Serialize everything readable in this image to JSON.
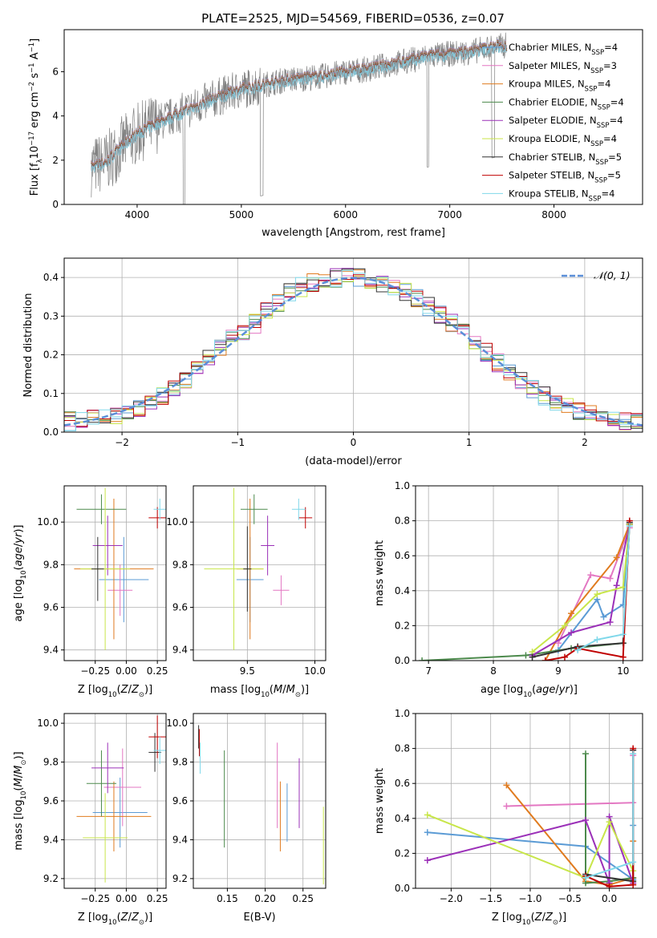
{
  "title": "PLATE=2525, MJD=54569, FIBERID=0536, z=0.07",
  "colors": {
    "Chabrier MILES": "#5b9bd5",
    "Salpeter MILES": "#e377c2",
    "Kroupa MILES": "#e07b1f",
    "Chabrier ELODIE": "#4c8a4c",
    "Salpeter ELODIE": "#9b30b8",
    "Kroupa ELODIE": "#c8e64a",
    "Chabrier STELIB": "#333333",
    "Salpeter STELIB": "#c00000",
    "Kroupa STELIB": "#80d8ea",
    "data": "#808080",
    "normal": "#5b8fd8",
    "grid": "#b0b0b0"
  },
  "chart_data": [
    {
      "id": "spectrum",
      "type": "line",
      "xlabel": "wavelength [Angstrom, rest frame]",
      "ylabel_parts": [
        "Flux [f",
        "λ",
        "10",
        "−17",
        " erg cm",
        "−2",
        " s",
        "−1",
        " A",
        "−1",
        "]"
      ],
      "xlim": [
        3300,
        8850
      ],
      "ylim": [
        0,
        7.9
      ],
      "xticks": [
        4000,
        5000,
        6000,
        7000,
        8000
      ],
      "yticks": [
        0,
        2,
        4,
        6
      ],
      "grid": false,
      "legend_position": "top-right",
      "legend": [
        {
          "name": "Chabrier MILES",
          "nssp": 4
        },
        {
          "name": "Salpeter MILES",
          "nssp": 3
        },
        {
          "name": "Kroupa MILES",
          "nssp": 4
        },
        {
          "name": "Chabrier ELODIE",
          "nssp": 4
        },
        {
          "name": "Salpeter ELODIE",
          "nssp": 4
        },
        {
          "name": "Kroupa ELODIE",
          "nssp": 4
        },
        {
          "name": "Chabrier STELIB",
          "nssp": 5
        },
        {
          "name": "Salpeter STELIB",
          "nssp": 5
        },
        {
          "name": "Kroupa STELIB",
          "nssp": 4
        }
      ],
      "nssp_label": "N",
      "nssp_sub": "SSP",
      "continuum": {
        "x": [
          3550,
          3700,
          3850,
          4000,
          4200,
          4400,
          4600,
          4800,
          5000,
          5200,
          5400,
          5600,
          5800,
          6000,
          6200,
          6400,
          6600,
          6800,
          7000,
          7200,
          7400,
          7550
        ],
        "y": [
          1.7,
          1.9,
          2.6,
          3.2,
          3.7,
          4.1,
          4.5,
          4.9,
          5.2,
          5.4,
          5.6,
          5.7,
          5.8,
          6.0,
          6.1,
          6.3,
          6.5,
          6.7,
          6.8,
          6.9,
          7.1,
          7.2
        ]
      }
    },
    {
      "id": "residuals",
      "type": "histogram",
      "xlabel": "(data-model)/error",
      "ylabel": "Normed distribution",
      "xlim": [
        -2.5,
        2.5
      ],
      "ylim": [
        0,
        0.45
      ],
      "xticks": [
        -2,
        -1,
        0,
        1,
        2
      ],
      "yticks": [
        0.0,
        0.1,
        0.2,
        0.3,
        0.4
      ],
      "grid": true,
      "legend_position": "top-right",
      "normal_label": "𝒩(0, 1)",
      "bin_edges": [
        -2.5,
        -2.4,
        -2.3,
        -2.2,
        -2.1,
        -2.0,
        -1.9,
        -1.8,
        -1.7,
        -1.6,
        -1.5,
        -1.4,
        -1.3,
        -1.2,
        -1.1,
        -1.0,
        -0.9,
        -0.8,
        -0.7,
        -0.6,
        -0.5,
        -0.4,
        -0.3,
        -0.2,
        -0.1,
        0.0,
        0.1,
        0.2,
        0.3,
        0.4,
        0.5,
        0.6,
        0.7,
        0.8,
        0.9,
        1.0,
        1.1,
        1.2,
        1.3,
        1.4,
        1.5,
        1.6,
        1.7,
        1.8,
        1.9,
        2.0,
        2.1,
        2.2,
        2.3,
        2.4,
        2.5
      ],
      "hist_base": [
        0.028,
        0.03,
        0.033,
        0.04,
        0.045,
        0.052,
        0.06,
        0.075,
        0.095,
        0.115,
        0.138,
        0.16,
        0.19,
        0.215,
        0.24,
        0.26,
        0.28,
        0.31,
        0.335,
        0.36,
        0.375,
        0.385,
        0.395,
        0.4,
        0.4,
        0.398,
        0.393,
        0.385,
        0.372,
        0.36,
        0.345,
        0.325,
        0.305,
        0.28,
        0.258,
        0.23,
        0.205,
        0.18,
        0.158,
        0.135,
        0.112,
        0.095,
        0.08,
        0.068,
        0.057,
        0.048,
        0.04,
        0.035,
        0.03,
        0.027
      ]
    },
    {
      "id": "age_vs_z",
      "type": "errorbar",
      "xlabel": "Z [log10(Z/Z⊙)]",
      "ylabel": "age  [log10(age/yr)]",
      "xlim": [
        -0.5,
        0.32
      ],
      "ylim": [
        9.35,
        10.17
      ],
      "xticks": [
        -0.25,
        0.0,
        0.25
      ],
      "yticks": [
        9.4,
        9.6,
        9.8,
        10.0
      ],
      "grid": true,
      "points": [
        {
          "s": "Chabrier MILES",
          "x": -0.02,
          "y": 9.73,
          "xe": 0.2,
          "ye": 0.2
        },
        {
          "s": "Salpeter MILES",
          "x": -0.05,
          "y": 9.68,
          "xe": 0.1,
          "ye": 0.12
        },
        {
          "s": "Kroupa MILES",
          "x": -0.1,
          "y": 9.78,
          "xe": 0.32,
          "ye": 0.33
        },
        {
          "s": "Chabrier ELODIE",
          "x": -0.2,
          "y": 10.06,
          "xe": 0.2,
          "ye": 0.07
        },
        {
          "s": "Salpeter ELODIE",
          "x": -0.15,
          "y": 9.89,
          "xe": 0.12,
          "ye": 0.14
        },
        {
          "s": "Kroupa ELODIE",
          "x": -0.17,
          "y": 9.78,
          "xe": 0.2,
          "ye": 0.38
        },
        {
          "s": "Chabrier STELIB",
          "x": -0.23,
          "y": 9.78,
          "xe": 0.05,
          "ye": 0.15
        },
        {
          "s": "Salpeter STELIB",
          "x": 0.25,
          "y": 10.02,
          "xe": 0.07,
          "ye": 0.05
        },
        {
          "s": "Kroupa STELIB",
          "x": 0.27,
          "y": 10.06,
          "xe": 0.05,
          "ye": 0.05
        }
      ]
    },
    {
      "id": "age_vs_mass",
      "type": "errorbar",
      "xlabel": "mass [log10(M/M⊙)]",
      "ylabel": "",
      "xlim": [
        9.1,
        10.08
      ],
      "ylim": [
        9.35,
        10.17
      ],
      "xticks": [
        9.5,
        10.0
      ],
      "yticks": [
        9.4,
        9.6,
        9.8,
        10.0
      ],
      "grid": true,
      "points": [
        {
          "s": "Chabrier MILES",
          "x": 9.52,
          "y": 9.73,
          "xe": 0.1,
          "ye": 0.2
        },
        {
          "s": "Salpeter MILES",
          "x": 9.75,
          "y": 9.68,
          "xe": 0.06,
          "ye": 0.07
        },
        {
          "s": "Kroupa MILES",
          "x": 9.52,
          "y": 9.78,
          "xe": 0.1,
          "ye": 0.33
        },
        {
          "s": "Chabrier ELODIE",
          "x": 9.55,
          "y": 10.06,
          "xe": 0.1,
          "ye": 0.07
        },
        {
          "s": "Salpeter ELODIE",
          "x": 9.65,
          "y": 9.89,
          "xe": 0.05,
          "ye": 0.14
        },
        {
          "s": "Kroupa ELODIE",
          "x": 9.4,
          "y": 9.78,
          "xe": 0.22,
          "ye": 0.38
        },
        {
          "s": "Chabrier STELIB",
          "x": 9.5,
          "y": 9.78,
          "xe": 0.03,
          "ye": 0.2
        },
        {
          "s": "Salpeter STELIB",
          "x": 9.93,
          "y": 10.02,
          "xe": 0.05,
          "ye": 0.05
        },
        {
          "s": "Kroupa STELIB",
          "x": 9.88,
          "y": 10.06,
          "xe": 0.05,
          "ye": 0.05
        }
      ]
    },
    {
      "id": "weight_vs_age",
      "type": "line",
      "xlabel": "age  [log10(age/yr)]",
      "ylabel": "mass weight",
      "xlim": [
        6.8,
        10.3
      ],
      "ylim": [
        0,
        1.0
      ],
      "xticks": [
        7,
        8,
        9,
        10
      ],
      "yticks": [
        0.0,
        0.2,
        0.4,
        0.6,
        0.8,
        1.0
      ],
      "grid": true,
      "series": [
        {
          "s": "Chabrier MILES",
          "x": [
            9.0,
            9.6,
            9.7,
            10.0,
            10.1
          ],
          "y": [
            0.06,
            0.35,
            0.25,
            0.32,
            0.78
          ]
        },
        {
          "s": "Salpeter MILES",
          "x": [
            9.0,
            9.5,
            9.8,
            10.1
          ],
          "y": [
            0.1,
            0.49,
            0.47,
            0.76
          ]
        },
        {
          "s": "Kroupa MILES",
          "x": [
            8.8,
            9.2,
            9.9,
            10.1
          ],
          "y": [
            0.0,
            0.27,
            0.59,
            0.78
          ]
        },
        {
          "s": "Chabrier ELODIE",
          "x": [
            6.9,
            8.5,
            9.2,
            10.0,
            10.1
          ],
          "y": [
            0.0,
            0.03,
            0.07,
            0.1,
            0.78
          ]
        },
        {
          "s": "Salpeter ELODIE",
          "x": [
            8.6,
            9.2,
            9.8,
            9.9,
            10.1
          ],
          "y": [
            0.03,
            0.16,
            0.22,
            0.43,
            0.78
          ]
        },
        {
          "s": "Kroupa ELODIE",
          "x": [
            8.6,
            9.1,
            9.6,
            10.0,
            10.1
          ],
          "y": [
            0.05,
            0.2,
            0.38,
            0.42,
            0.78
          ]
        },
        {
          "s": "Chabrier STELIB",
          "x": [
            8.6,
            9.3,
            10.0,
            10.1
          ],
          "y": [
            0.02,
            0.08,
            0.1,
            0.79
          ]
        },
        {
          "s": "Salpeter STELIB",
          "x": [
            8.8,
            9.1,
            9.3,
            10.0,
            10.1
          ],
          "y": [
            0.0,
            0.02,
            0.07,
            0.02,
            0.8
          ]
        },
        {
          "s": "Kroupa STELIB",
          "x": [
            9.3,
            9.6,
            10.0,
            10.1
          ],
          "y": [
            0.06,
            0.12,
            0.15,
            0.77
          ]
        }
      ]
    },
    {
      "id": "mass_vs_z",
      "type": "errorbar",
      "xlabel": "Z [log10(Z/Z⊙)]",
      "ylabel": "mass [log10(M/M⊙)]",
      "xlim": [
        -0.5,
        0.32
      ],
      "ylim": [
        9.15,
        10.05
      ],
      "xticks": [
        -0.25,
        0.0,
        0.25
      ],
      "yticks": [
        9.2,
        9.4,
        9.6,
        9.8,
        10.0
      ],
      "grid": true,
      "points": [
        {
          "s": "Chabrier MILES",
          "x": -0.05,
          "y": 9.54,
          "xe": 0.22,
          "ye": 0.18
        },
        {
          "s": "Salpeter MILES",
          "x": -0.03,
          "y": 9.67,
          "xe": 0.15,
          "ye": 0.2
        },
        {
          "s": "Kroupa MILES",
          "x": -0.1,
          "y": 9.52,
          "xe": 0.3,
          "ye": 0.18
        },
        {
          "s": "Chabrier ELODIE",
          "x": -0.2,
          "y": 9.69,
          "xe": 0.12,
          "ye": 0.17
        },
        {
          "s": "Salpeter ELODIE",
          "x": -0.15,
          "y": 9.77,
          "xe": 0.13,
          "ye": 0.13
        },
        {
          "s": "Kroupa ELODIE",
          "x": -0.17,
          "y": 9.41,
          "xe": 0.18,
          "ye": 0.23
        },
        {
          "s": "Chabrier STELIB",
          "x": 0.23,
          "y": 9.85,
          "xe": 0.05,
          "ye": 0.1
        },
        {
          "s": "Salpeter STELIB",
          "x": 0.25,
          "y": 9.93,
          "xe": 0.07,
          "ye": 0.11
        },
        {
          "s": "Kroupa STELIB",
          "x": 0.27,
          "y": 9.86,
          "xe": 0.05,
          "ye": 0.07
        }
      ]
    },
    {
      "id": "mass_vs_ebv",
      "type": "errorbar",
      "xlabel": "E(B-V)",
      "ylabel": "",
      "xlim": [
        0.105,
        0.28
      ],
      "ylim": [
        9.15,
        10.05
      ],
      "xticks": [
        0.15,
        0.2,
        0.25
      ],
      "yticks": [
        9.2,
        9.4,
        9.6,
        9.8,
        10.0
      ],
      "grid": true,
      "points": [
        {
          "s": "Chabrier MILES",
          "x": 0.229,
          "y": 9.54,
          "xe": 0,
          "ye": 0.15
        },
        {
          "s": "Salpeter MILES",
          "x": 0.216,
          "y": 9.68,
          "xe": 0,
          "ye": 0.22
        },
        {
          "s": "Kroupa MILES",
          "x": 0.22,
          "y": 9.52,
          "xe": 0,
          "ye": 0.18
        },
        {
          "s": "Chabrier ELODIE",
          "x": 0.146,
          "y": 9.61,
          "xe": 0,
          "ye": 0.25
        },
        {
          "s": "Salpeter ELODIE",
          "x": 0.245,
          "y": 9.64,
          "xe": 0,
          "ye": 0.18
        },
        {
          "s": "Kroupa ELODIE",
          "x": 0.277,
          "y": 9.37,
          "xe": 0,
          "ye": 0.2
        },
        {
          "s": "Chabrier STELIB",
          "x": 0.112,
          "y": 9.93,
          "xe": 0,
          "ye": 0.06
        },
        {
          "s": "Salpeter STELIB",
          "x": 0.113,
          "y": 9.9,
          "xe": 0,
          "ye": 0.07
        },
        {
          "s": "Kroupa STELIB",
          "x": 0.114,
          "y": 9.82,
          "xe": 0,
          "ye": 0.08
        }
      ]
    },
    {
      "id": "weight_vs_z",
      "type": "line",
      "xlabel": "Z [log10(Z/Z⊙)]",
      "ylabel": "mass weight",
      "xlim": [
        -2.45,
        0.42
      ],
      "ylim": [
        0,
        1.0
      ],
      "xticks": [
        -2.0,
        -1.5,
        -1.0,
        -0.5,
        0.0
      ],
      "yticks": [
        0.0,
        0.2,
        0.4,
        0.6,
        0.8,
        1.0
      ],
      "grid": true,
      "series": [
        {
          "s": "Chabrier MILES",
          "x": [
            -2.3,
            -0.3,
            0.3,
            0.3
          ],
          "y": [
            0.32,
            0.24,
            0.05,
            0.36
          ]
        },
        {
          "s": "Salpeter MILES",
          "x": [
            -1.3,
            0.3,
            0.3
          ],
          "y": [
            0.47,
            0.49,
            0.76
          ]
        },
        {
          "s": "Kroupa MILES",
          "x": [
            -1.3,
            -0.3,
            0.0,
            0.3,
            0.3
          ],
          "y": [
            0.59,
            0.04,
            0.02,
            0.06,
            0.27
          ]
        },
        {
          "s": "Chabrier ELODIE",
          "x": [
            -0.3,
            -0.3,
            0.0,
            0.3
          ],
          "y": [
            0.77,
            0.03,
            0.04,
            0.06
          ]
        },
        {
          "s": "Salpeter ELODIE",
          "x": [
            -2.3,
            -0.3,
            0.0,
            0.0,
            0.3
          ],
          "y": [
            0.16,
            0.39,
            0.03,
            0.41,
            0.03
          ]
        },
        {
          "s": "Kroupa ELODIE",
          "x": [
            -2.3,
            -0.3,
            0.0,
            0.3
          ],
          "y": [
            0.42,
            0.06,
            0.38,
            0.1
          ]
        },
        {
          "s": "Chabrier STELIB",
          "x": [
            -0.3,
            0.3,
            0.3
          ],
          "y": [
            0.08,
            0.04,
            0.79
          ]
        },
        {
          "s": "Salpeter STELIB",
          "x": [
            -0.3,
            0.0,
            0.3,
            0.3
          ],
          "y": [
            0.07,
            0.01,
            0.02,
            0.8
          ]
        },
        {
          "s": "Kroupa STELIB",
          "x": [
            -0.3,
            0.3,
            0.3
          ],
          "y": [
            0.06,
            0.15,
            0.77
          ]
        }
      ]
    }
  ]
}
